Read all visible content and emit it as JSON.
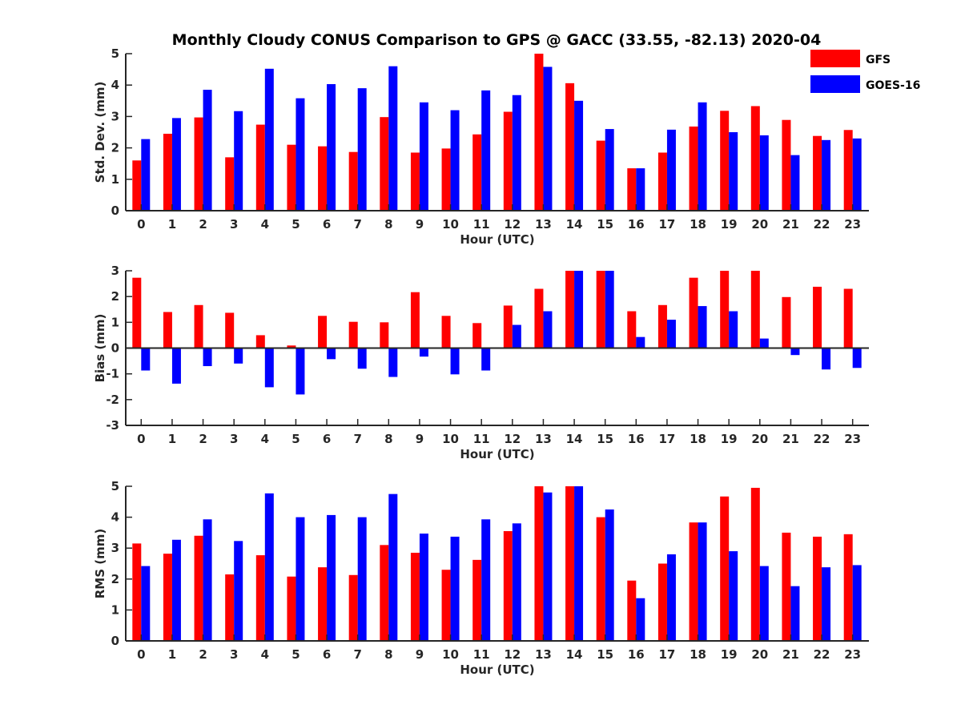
{
  "title": "Monthly Cloudy CONUS Comparison to GPS @ GACC (33.55, -82.13) 2020-04",
  "colors": {
    "GFS": "#ff0000",
    "GOES-16": "#0000ff"
  },
  "legend": {
    "placement": "top-right",
    "entries": [
      "GFS",
      "GOES-16"
    ]
  },
  "chart_data": [
    {
      "type": "bar",
      "title": "Monthly Cloudy CONUS Comparison to GPS @ GACC (33.55, -82.13) 2020-04",
      "xlabel": "Hour (UTC)",
      "ylabel": "Std. Dev. (mm)",
      "ylim": [
        0,
        5
      ],
      "yticks": [
        0,
        1,
        2,
        3,
        4,
        5
      ],
      "grid": false,
      "categories": [
        "0",
        "1",
        "2",
        "3",
        "4",
        "5",
        "6",
        "7",
        "8",
        "9",
        "10",
        "11",
        "12",
        "13",
        "14",
        "15",
        "16",
        "17",
        "18",
        "19",
        "20",
        "21",
        "22",
        "23"
      ],
      "series": [
        {
          "name": "GFS",
          "values": [
            1.6,
            2.45,
            2.97,
            1.7,
            2.74,
            2.1,
            2.05,
            1.87,
            2.98,
            1.85,
            1.98,
            2.43,
            3.15,
            5.0,
            4.06,
            2.23,
            1.35,
            1.85,
            2.68,
            3.18,
            3.33,
            2.89,
            2.38,
            2.57
          ]
        },
        {
          "name": "GOES-16",
          "values": [
            2.28,
            2.95,
            3.85,
            3.17,
            4.52,
            3.58,
            4.03,
            3.9,
            4.6,
            3.45,
            3.2,
            3.83,
            3.68,
            4.58,
            3.5,
            2.6,
            1.35,
            2.58,
            3.45,
            2.5,
            2.4,
            1.77,
            2.25,
            2.3
          ]
        }
      ]
    },
    {
      "type": "bar",
      "xlabel": "Hour (UTC)",
      "ylabel": "Bias (mm)",
      "ylim": [
        -3,
        3
      ],
      "yticks": [
        -3,
        -2,
        -1,
        0,
        1,
        2,
        3
      ],
      "grid": false,
      "categories": [
        "0",
        "1",
        "2",
        "3",
        "4",
        "5",
        "6",
        "7",
        "8",
        "9",
        "10",
        "11",
        "12",
        "13",
        "14",
        "15",
        "16",
        "17",
        "18",
        "19",
        "20",
        "21",
        "22",
        "23"
      ],
      "series": [
        {
          "name": "GFS",
          "values": [
            2.73,
            1.4,
            1.67,
            1.37,
            0.5,
            0.1,
            1.25,
            1.02,
            1.0,
            2.17,
            1.25,
            0.97,
            1.65,
            2.3,
            3.0,
            3.0,
            1.43,
            1.67,
            2.73,
            3.0,
            3.0,
            1.98,
            2.38,
            2.3
          ]
        },
        {
          "name": "GOES-16",
          "values": [
            -0.87,
            -1.38,
            -0.7,
            -0.6,
            -1.52,
            -1.8,
            -0.43,
            -0.8,
            -1.12,
            -0.33,
            -1.02,
            -0.87,
            0.9,
            1.43,
            3.0,
            3.0,
            0.43,
            1.1,
            1.63,
            1.43,
            0.37,
            -0.27,
            -0.83,
            -0.77
          ]
        }
      ]
    },
    {
      "type": "bar",
      "xlabel": "Hour (UTC)",
      "ylabel": "RMS (mm)",
      "ylim": [
        0,
        5
      ],
      "yticks": [
        0,
        1,
        2,
        3,
        4,
        5
      ],
      "grid": false,
      "categories": [
        "0",
        "1",
        "2",
        "3",
        "4",
        "5",
        "6",
        "7",
        "8",
        "9",
        "10",
        "11",
        "12",
        "13",
        "14",
        "15",
        "16",
        "17",
        "18",
        "19",
        "20",
        "21",
        "22",
        "23"
      ],
      "series": [
        {
          "name": "GFS",
          "values": [
            3.15,
            2.82,
            3.4,
            2.15,
            2.77,
            2.08,
            2.38,
            2.13,
            3.1,
            2.85,
            2.3,
            2.62,
            3.55,
            5.0,
            5.0,
            4.0,
            1.95,
            2.5,
            3.83,
            4.67,
            4.95,
            3.5,
            3.37,
            3.45
          ]
        },
        {
          "name": "GOES-16",
          "values": [
            2.42,
            3.27,
            3.93,
            3.23,
            4.77,
            4.0,
            4.07,
            4.0,
            4.75,
            3.47,
            3.37,
            3.93,
            3.8,
            4.8,
            5.0,
            4.25,
            1.38,
            2.8,
            3.83,
            2.9,
            2.42,
            1.77,
            2.38,
            2.45
          ]
        }
      ]
    }
  ]
}
